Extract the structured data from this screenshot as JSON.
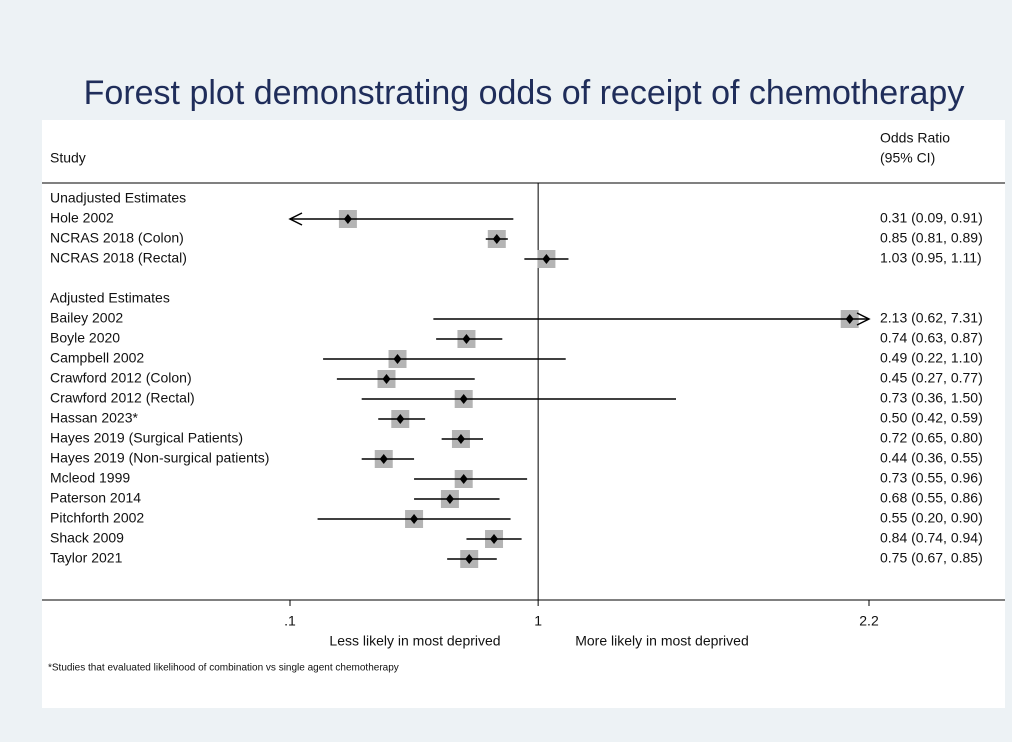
{
  "chart_data": {
    "type": "forest",
    "title": "Forest plot demonstrating odds of receipt of chemotherapy",
    "study_header": "Study",
    "or_header": [
      "Odds Ratio",
      "(95% CI)"
    ],
    "xlim": [
      0.1,
      2.2
    ],
    "xticks": [
      {
        "value": 0.1,
        "label": ".1"
      },
      1,
      2.2
    ],
    "null_line": 1,
    "left_label": "Less likely in most deprived",
    "right_label": "More likely in most deprived",
    "footnote": "*Studies that evaluated likelihood of combination vs single agent chemotherapy",
    "color": "#000000",
    "box_color": "#b4b4b4",
    "series": [
      {
        "name": "Unadjusted Estimates",
        "categories": [
          "Hole 2002",
          "NCRAS 2018 (Colon)",
          "NCRAS 2018 (Rectal)"
        ],
        "values": [
          0.31,
          0.85,
          1.03
        ],
        "lower": [
          0.09,
          0.81,
          0.95
        ],
        "upper": [
          0.91,
          0.89,
          1.11
        ],
        "value_labels": [
          "0.31 (0.09, 0.91)",
          "0.85 (0.81, 0.89)",
          "1.03 (0.95, 1.11)"
        ]
      },
      {
        "name": "Adjusted Estimates",
        "categories": [
          "Bailey 2002",
          "Boyle 2020",
          "Campbell 2002",
          "Crawford 2012 (Colon)",
          "Crawford 2012 (Rectal)",
          "Hassan 2023*",
          "Hayes 2019 (Surgical Patients)",
          "Hayes 2019 (Non-surgical patients)",
          "Mcleod 1999",
          "Paterson 2014",
          "Pitchforth 2002",
          "Shack 2009",
          "Taylor 2021"
        ],
        "values": [
          2.13,
          0.74,
          0.49,
          0.45,
          0.73,
          0.5,
          0.72,
          0.44,
          0.73,
          0.68,
          0.55,
          0.84,
          0.75
        ],
        "lower": [
          0.62,
          0.63,
          0.22,
          0.27,
          0.36,
          0.42,
          0.65,
          0.36,
          0.55,
          0.55,
          0.2,
          0.74,
          0.67
        ],
        "upper": [
          7.31,
          0.87,
          1.1,
          0.77,
          1.5,
          0.59,
          0.8,
          0.55,
          0.96,
          0.86,
          0.9,
          0.94,
          0.85
        ],
        "value_labels": [
          "2.13 (0.62, 7.31)",
          "0.74 (0.63, 0.87)",
          "0.49 (0.22, 1.10)",
          "0.45 (0.27, 0.77)",
          "0.73 (0.36, 1.50)",
          "0.50 (0.42, 0.59)",
          "0.72 (0.65, 0.80)",
          "0.44 (0.36, 0.55)",
          "0.73 (0.55, 0.96)",
          "0.68 (0.55, 0.86)",
          "0.55 (0.20, 0.90)",
          "0.84 (0.74, 0.94)",
          "0.75 (0.67, 0.85)"
        ]
      }
    ]
  }
}
